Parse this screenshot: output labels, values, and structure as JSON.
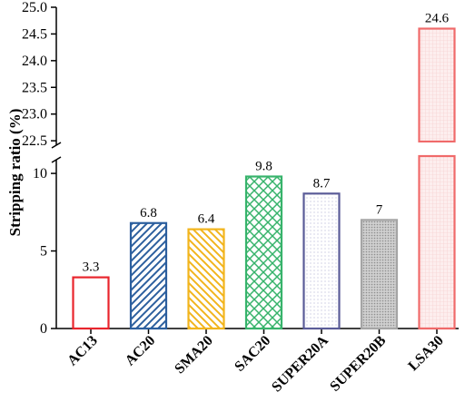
{
  "chart_data": {
    "type": "bar",
    "ylabel": "Stripping ratio (%)",
    "xlabel": "",
    "title": "",
    "grid": false,
    "y_axis_break": true,
    "lower_segment": {
      "ylim": [
        0,
        11
      ],
      "ticks": [
        "0",
        "5",
        "10"
      ]
    },
    "upper_segment": {
      "ylim": [
        22.4,
        25.0
      ],
      "ticks": [
        "22.5",
        "23.0",
        "23.5",
        "24.0",
        "24.5",
        "25.0"
      ]
    },
    "categories": [
      "AC13",
      "AC20",
      "SMA20",
      "SAC20",
      "SUPER20A",
      "SUPER20B",
      "LSA30"
    ],
    "values": [
      3.3,
      6.8,
      6.4,
      9.8,
      8.7,
      7,
      24.6
    ],
    "value_labels": [
      "3.3",
      "6.8",
      "6.4",
      "9.8",
      "8.7",
      "7",
      "24.6"
    ],
    "colors": [
      "#e8252d",
      "#2c5f9e",
      "#f2b51d",
      "#37b36b",
      "#5b5c98",
      "#a5a5a5",
      "#f06a6a"
    ],
    "patterns": [
      "none",
      "diagonal-forward",
      "diagonal-back",
      "crosshatch",
      "dots",
      "dots-dense",
      "grid-fine"
    ]
  }
}
